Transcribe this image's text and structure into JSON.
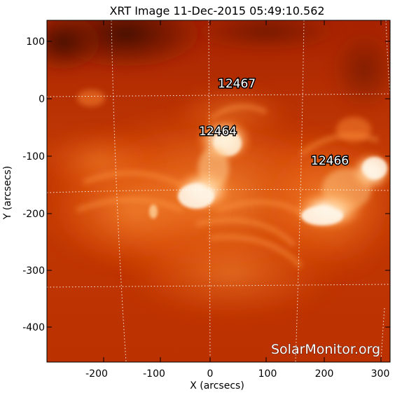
{
  "title": "XRT Image 11-Dec-2015 05:49:10.562",
  "x_axis": {
    "label": "X (arcsecs)",
    "ticks": [
      "-200",
      "-100",
      "0",
      "100",
      "200",
      "300"
    ]
  },
  "y_axis": {
    "label": "Y (arcsecs)",
    "ticks": [
      "100",
      "0",
      "-100",
      "-200",
      "-300",
      "-400"
    ]
  },
  "active_regions": [
    {
      "id": "ar-12467",
      "label": "12467"
    },
    {
      "id": "ar-12464",
      "label": "12464"
    },
    {
      "id": "ar-12466",
      "label": "12466"
    }
  ],
  "watermark": "SolarMonitor.org",
  "colors": {
    "background": "#b52a00",
    "bright": "#fff3df",
    "grid": "#ffffff"
  }
}
